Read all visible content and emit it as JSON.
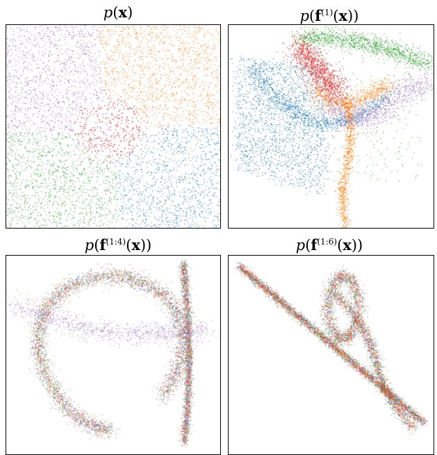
{
  "panels": [
    {
      "id": "px",
      "title_base": "x",
      "title_sup": ""
    },
    {
      "id": "pf1",
      "title_base": "f",
      "title_sup": "(1)"
    },
    {
      "id": "pf14",
      "title_base": "f",
      "title_sup": "(1:4)"
    },
    {
      "id": "pf16",
      "title_base": "f",
      "title_sup": "(1:6)"
    }
  ],
  "colors": {
    "blue": "#1f77b4",
    "orange": "#ff7f0e",
    "green": "#2ca02c",
    "red": "#d62728",
    "purple": "#9467bd"
  },
  "chart_data": [
    {
      "type": "scatter",
      "title": "p(x)",
      "series": [
        {
          "color": "purple",
          "region": "top-left quadrant"
        },
        {
          "color": "orange",
          "region": "top-right quadrant"
        },
        {
          "color": "green",
          "region": "bottom-left quadrant"
        },
        {
          "color": "blue",
          "region": "bottom-right quadrant"
        },
        {
          "color": "red",
          "region": "center"
        }
      ],
      "grid": false
    },
    {
      "type": "scatter",
      "title": "p(f^(1)(x))",
      "series": [
        {
          "color": "blue"
        },
        {
          "color": "green"
        },
        {
          "color": "red"
        },
        {
          "color": "orange"
        },
        {
          "color": "purple"
        }
      ],
      "grid": false
    },
    {
      "type": "scatter",
      "title": "p(f^(1:4)(x))",
      "series": [
        {
          "color": "blue"
        },
        {
          "color": "orange"
        },
        {
          "color": "green"
        },
        {
          "color": "red"
        },
        {
          "color": "purple"
        }
      ],
      "grid": false
    },
    {
      "type": "scatter",
      "title": "p(f^(1:6)(x))",
      "series": [
        {
          "color": "blue"
        },
        {
          "color": "orange"
        },
        {
          "color": "green"
        },
        {
          "color": "red"
        },
        {
          "color": "purple"
        }
      ],
      "grid": false
    }
  ]
}
